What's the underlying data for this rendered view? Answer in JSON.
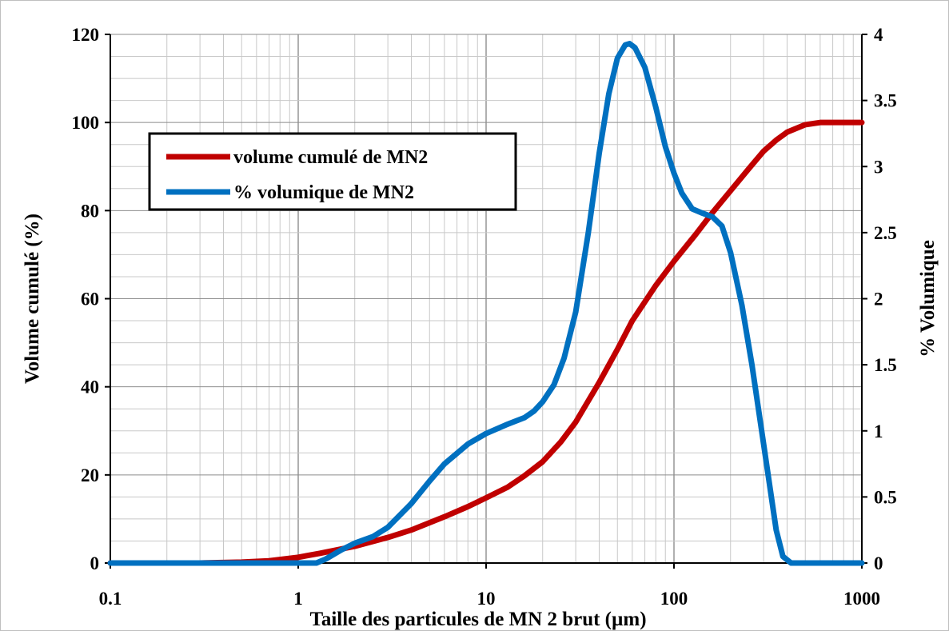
{
  "chart_data": {
    "type": "line",
    "x_scale": "log",
    "xlim": [
      0.1,
      1000
    ],
    "ylim_left": [
      0,
      120
    ],
    "ylim_right": [
      0,
      4
    ],
    "xlabel": "Taille des particules de MN 2 brut (µm)",
    "ylabel_left": "Volume cumulé (%)",
    "ylabel_right": "% Volumique",
    "x_ticks": [
      "0.1",
      "1",
      "10",
      "100",
      "1000"
    ],
    "y_left_ticks": [
      "0",
      "20",
      "40",
      "60",
      "80",
      "100",
      "120"
    ],
    "y_right_ticks": [
      "0",
      "0.5",
      "1",
      "1.5",
      "2",
      "2.5",
      "3",
      "3.5",
      "4"
    ],
    "grid": true,
    "legend_position": "upper-left",
    "colors": {
      "cumulative": "#c00000",
      "volume": "#0070c0"
    },
    "series": [
      {
        "name": "volume cumulé de MN2",
        "axis": "left",
        "x": [
          0.1,
          0.3,
          0.5,
          0.7,
          1.0,
          1.3,
          2,
          3,
          4,
          6,
          8,
          10,
          13,
          16,
          20,
          25,
          30,
          40,
          50,
          60,
          80,
          100,
          130,
          160,
          200,
          250,
          300,
          350,
          400,
          500,
          600,
          800,
          1000
        ],
        "values": [
          0,
          0,
          0.2,
          0.5,
          1.3,
          2.2,
          3.8,
          5.8,
          7.5,
          10.5,
          12.8,
          14.8,
          17.2,
          19.8,
          23,
          27.5,
          32,
          41,
          48.5,
          55,
          63,
          68.5,
          74.5,
          79.5,
          84.5,
          89.5,
          93.5,
          96,
          97.8,
          99.5,
          100,
          100,
          100
        ]
      },
      {
        "name": "% volumique de MN2",
        "axis": "right",
        "x": [
          0.1,
          0.5,
          1.0,
          1.25,
          1.4,
          1.7,
          2.0,
          2.5,
          3,
          4,
          5,
          6,
          8,
          10,
          13,
          16,
          18,
          20,
          23,
          26,
          30,
          35,
          40,
          45,
          50,
          55,
          58,
          62,
          70,
          80,
          90,
          100,
          110,
          125,
          140,
          160,
          180,
          200,
          230,
          260,
          300,
          350,
          380,
          420,
          1000
        ],
        "values": [
          0,
          0,
          0,
          0,
          0.03,
          0.1,
          0.15,
          0.2,
          0.27,
          0.45,
          0.62,
          0.75,
          0.9,
          0.98,
          1.05,
          1.1,
          1.15,
          1.22,
          1.35,
          1.55,
          1.9,
          2.5,
          3.1,
          3.55,
          3.82,
          3.92,
          3.93,
          3.9,
          3.75,
          3.45,
          3.15,
          2.95,
          2.8,
          2.68,
          2.65,
          2.62,
          2.55,
          2.35,
          1.95,
          1.5,
          0.9,
          0.25,
          0.05,
          0,
          0
        ]
      }
    ]
  }
}
